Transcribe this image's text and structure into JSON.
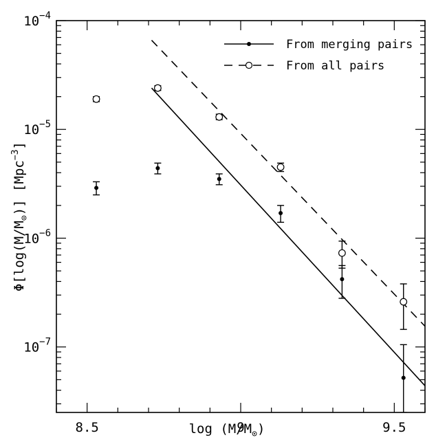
{
  "chart_data": {
    "type": "scatter",
    "title": "",
    "xlabel": "log (M/M",
    "xlabel_sub": "⊙",
    "xlabel_close": ")",
    "ylabel": "Φ[log(M/M",
    "ylabel_sub": "⊙",
    "ylabel_close": ")] [Mpc",
    "ylabel_sup": "−3",
    "ylabel_end": "]",
    "xlim": [
      8.4,
      9.6
    ],
    "ylim": [
      2.5e-08,
      0.0001
    ],
    "yscale": "log",
    "grid": false,
    "legend_position": "top-right",
    "x_ticks": [
      {
        "value": 8.5,
        "label": "8.5"
      },
      {
        "value": 9,
        "label": "9"
      },
      {
        "value": 9.5,
        "label": "9.5"
      }
    ],
    "y_ticks": [
      {
        "value": 1e-07,
        "base": "10",
        "exp": "−7"
      },
      {
        "value": 1e-06,
        "base": "10",
        "exp": "−6"
      },
      {
        "value": 1e-05,
        "base": "10",
        "exp": "−5"
      },
      {
        "value": 0.0001,
        "base": "10",
        "exp": "−4"
      }
    ],
    "series": [
      {
        "name": "From merging pairs",
        "marker": "filled-circle",
        "line": "solid",
        "points": [
          {
            "x": 8.53,
            "y": 2.9e-06,
            "ylo": 2.5e-06,
            "yhi": 3.3e-06
          },
          {
            "x": 8.73,
            "y": 4.4e-06,
            "ylo": 3.9e-06,
            "yhi": 4.9e-06
          },
          {
            "x": 8.93,
            "y": 3.5e-06,
            "ylo": 3.1e-06,
            "yhi": 3.9e-06
          },
          {
            "x": 9.13,
            "y": 1.7e-06,
            "ylo": 1.4e-06,
            "yhi": 2e-06
          },
          {
            "x": 9.33,
            "y": 4.2e-07,
            "ylo": 2.8e-07,
            "yhi": 5.6e-07
          },
          {
            "x": 9.53,
            "y": 5.2e-08,
            "ylo": 2.5e-08,
            "yhi": 1.05e-07
          }
        ],
        "fit": {
          "x": [
            8.71,
            9.6
          ],
          "y": [
            2.4e-05,
            4.4e-08
          ]
        }
      },
      {
        "name": "From all pairs",
        "marker": "open-circle",
        "line": "dashed",
        "points": [
          {
            "x": 8.53,
            "y": 1.9e-05,
            "ylo": 1.8e-05,
            "yhi": 2e-05
          },
          {
            "x": 8.73,
            "y": 2.4e-05,
            "ylo": 2.28e-05,
            "yhi": 2.52e-05
          },
          {
            "x": 8.93,
            "y": 1.3e-05,
            "ylo": 1.23e-05,
            "yhi": 1.38e-05
          },
          {
            "x": 9.13,
            "y": 4.5e-06,
            "ylo": 4.1e-06,
            "yhi": 4.9e-06
          },
          {
            "x": 9.33,
            "y": 7.3e-07,
            "ylo": 5.3e-07,
            "yhi": 9.4e-07
          },
          {
            "x": 9.53,
            "y": 2.6e-07,
            "ylo": 1.45e-07,
            "yhi": 3.8e-07
          }
        ],
        "fit": {
          "x": [
            8.71,
            9.6
          ],
          "y": [
            6.6e-05,
            1.55e-07
          ]
        }
      }
    ]
  }
}
